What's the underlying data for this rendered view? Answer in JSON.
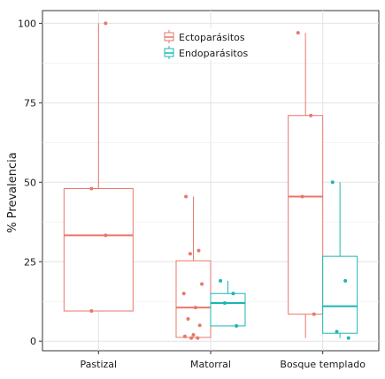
{
  "chart_data": {
    "type": "box",
    "ylabel": "% Prevalencia",
    "xlabel": "",
    "ylim": [
      -3,
      104
    ],
    "y_ticks": [
      0,
      25,
      50,
      75,
      100
    ],
    "y_tick_labels": [
      "0",
      "25",
      "50",
      "75",
      "100"
    ],
    "categories": [
      "Pastizal",
      "Matorral",
      "Bosque templado"
    ],
    "grid": true,
    "legend_position": "top-center",
    "series": [
      {
        "name": "Ectoparásitos",
        "color": "#e8776b",
        "boxes": [
          {
            "category": "Pastizal",
            "whisker_low": 9.5,
            "q1": 9.5,
            "median": 33.3,
            "q3": 48.0,
            "whisker_high": 100,
            "points": [
              100,
              48.0,
              33.3,
              9.5
            ]
          },
          {
            "category": "Matorral",
            "whisker_low": 1.0,
            "q1": 1.2,
            "median": 10.6,
            "q3": 25.3,
            "whisker_high": 45.5,
            "points": [
              45.5,
              28.5,
              27.5,
              18.0,
              15.0,
              10.6,
              7.0,
              5.0,
              2.0,
              1.5,
              1.0,
              1.0
            ]
          },
          {
            "category": "Bosque templado",
            "whisker_low": 1.0,
            "q1": 8.5,
            "median": 45.5,
            "q3": 71.0,
            "whisker_high": 97.0,
            "points": [
              97.0,
              71.0,
              45.5,
              8.5
            ]
          }
        ]
      },
      {
        "name": "Endoparásitos",
        "color": "#1db5b5",
        "boxes": [
          {
            "category": "Matorral",
            "whisker_low": 4.8,
            "q1": 4.8,
            "median": 12.0,
            "q3": 15.0,
            "whisker_high": 19.0,
            "points": [
              19.0,
              15.0,
              12.0,
              4.8
            ]
          },
          {
            "category": "Bosque templado",
            "whisker_low": 1.0,
            "q1": 2.5,
            "median": 11.0,
            "q3": 26.7,
            "whisker_high": 50.0,
            "points": [
              50.0,
              19.0,
              3.0,
              1.0
            ]
          }
        ]
      }
    ]
  }
}
